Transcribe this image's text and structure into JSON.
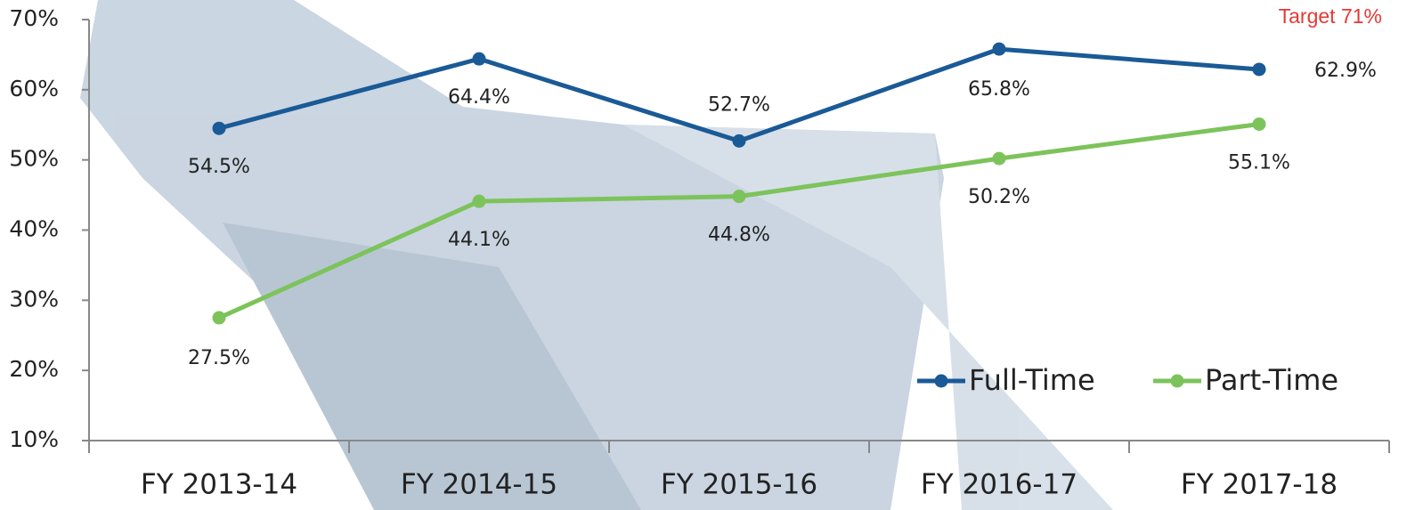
{
  "chart_data": {
    "type": "line",
    "annotation": "Target 71%",
    "categories": [
      "FY 2013-14",
      "FY 2014-15",
      "FY 2015-16",
      "FY 2016-17",
      "FY 2017-18"
    ],
    "series": [
      {
        "name": "Full-Time",
        "color": "#1a5a96",
        "values": [
          54.5,
          64.4,
          52.7,
          65.8,
          62.9
        ],
        "value_labels": [
          "54.5%",
          "64.4%",
          "52.7%",
          "65.8%",
          "62.9%"
        ]
      },
      {
        "name": "Part-Time",
        "color": "#7dc35b",
        "values": [
          27.5,
          44.1,
          44.8,
          50.2,
          55.1
        ],
        "value_labels": [
          "27.5%",
          "44.1%",
          "44.8%",
          "50.2%",
          "55.1%"
        ]
      }
    ],
    "ylim": [
      10,
      70
    ],
    "yticks": [
      {
        "value": 10,
        "label": "10%"
      },
      {
        "value": 20,
        "label": "20%"
      },
      {
        "value": 30,
        "label": "30%"
      },
      {
        "value": 40,
        "label": "40%"
      },
      {
        "value": 50,
        "label": "50%"
      },
      {
        "value": 60,
        "label": "60%"
      },
      {
        "value": 70,
        "label": "70%"
      }
    ],
    "legend": "lower right"
  }
}
